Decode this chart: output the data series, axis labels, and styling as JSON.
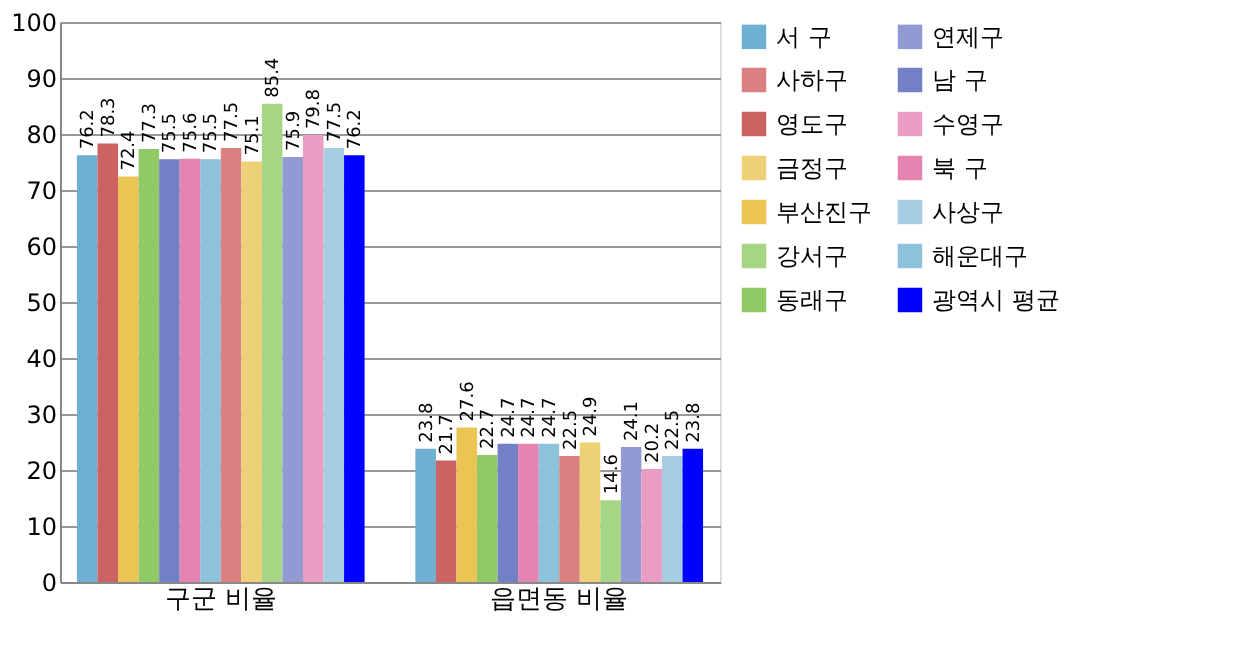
{
  "chart_data": {
    "type": "bar",
    "categories": [
      "구군 비율",
      "읍면동 비율"
    ],
    "series": [
      {
        "name": "서  구",
        "color": "#6fb0d2",
        "values": [
          76.2,
          23.8
        ]
      },
      {
        "name": "영도구",
        "color": "#cc6262",
        "values": [
          78.3,
          21.7
        ]
      },
      {
        "name": "부산진구",
        "color": "#ecc454",
        "values": [
          72.4,
          27.6
        ]
      },
      {
        "name": "동래구",
        "color": "#8fca66",
        "values": [
          77.3,
          22.7
        ]
      },
      {
        "name": "남  구",
        "color": "#7480c6",
        "values": [
          75.5,
          24.7
        ]
      },
      {
        "name": "북  구",
        "color": "#e584b0",
        "values": [
          75.6,
          24.7
        ]
      },
      {
        "name": "해운대구",
        "color": "#8ec1da",
        "values": [
          75.5,
          24.7
        ]
      },
      {
        "name": "사하구",
        "color": "#d98181",
        "values": [
          77.5,
          22.5
        ]
      },
      {
        "name": "금정구",
        "color": "#eed077",
        "values": [
          75.1,
          24.9
        ]
      },
      {
        "name": "강서구",
        "color": "#a5d585",
        "values": [
          85.4,
          14.6
        ]
      },
      {
        "name": "연제구",
        "color": "#919ad3",
        "values": [
          75.9,
          24.1
        ]
      },
      {
        "name": "수영구",
        "color": "#ea9dc3",
        "values": [
          79.8,
          20.2
        ]
      },
      {
        "name": "사상구",
        "color": "#a6cde2",
        "values": [
          77.5,
          22.5
        ]
      },
      {
        "name": "광역시 평균",
        "color": "#0000ff",
        "values": [
          76.2,
          23.8
        ]
      }
    ],
    "ylim": [
      0,
      100
    ],
    "yticks": [
      0,
      10,
      20,
      30,
      40,
      50,
      60,
      70,
      80,
      90,
      100
    ],
    "grid": "y",
    "legend": "right",
    "data_labels": true
  }
}
